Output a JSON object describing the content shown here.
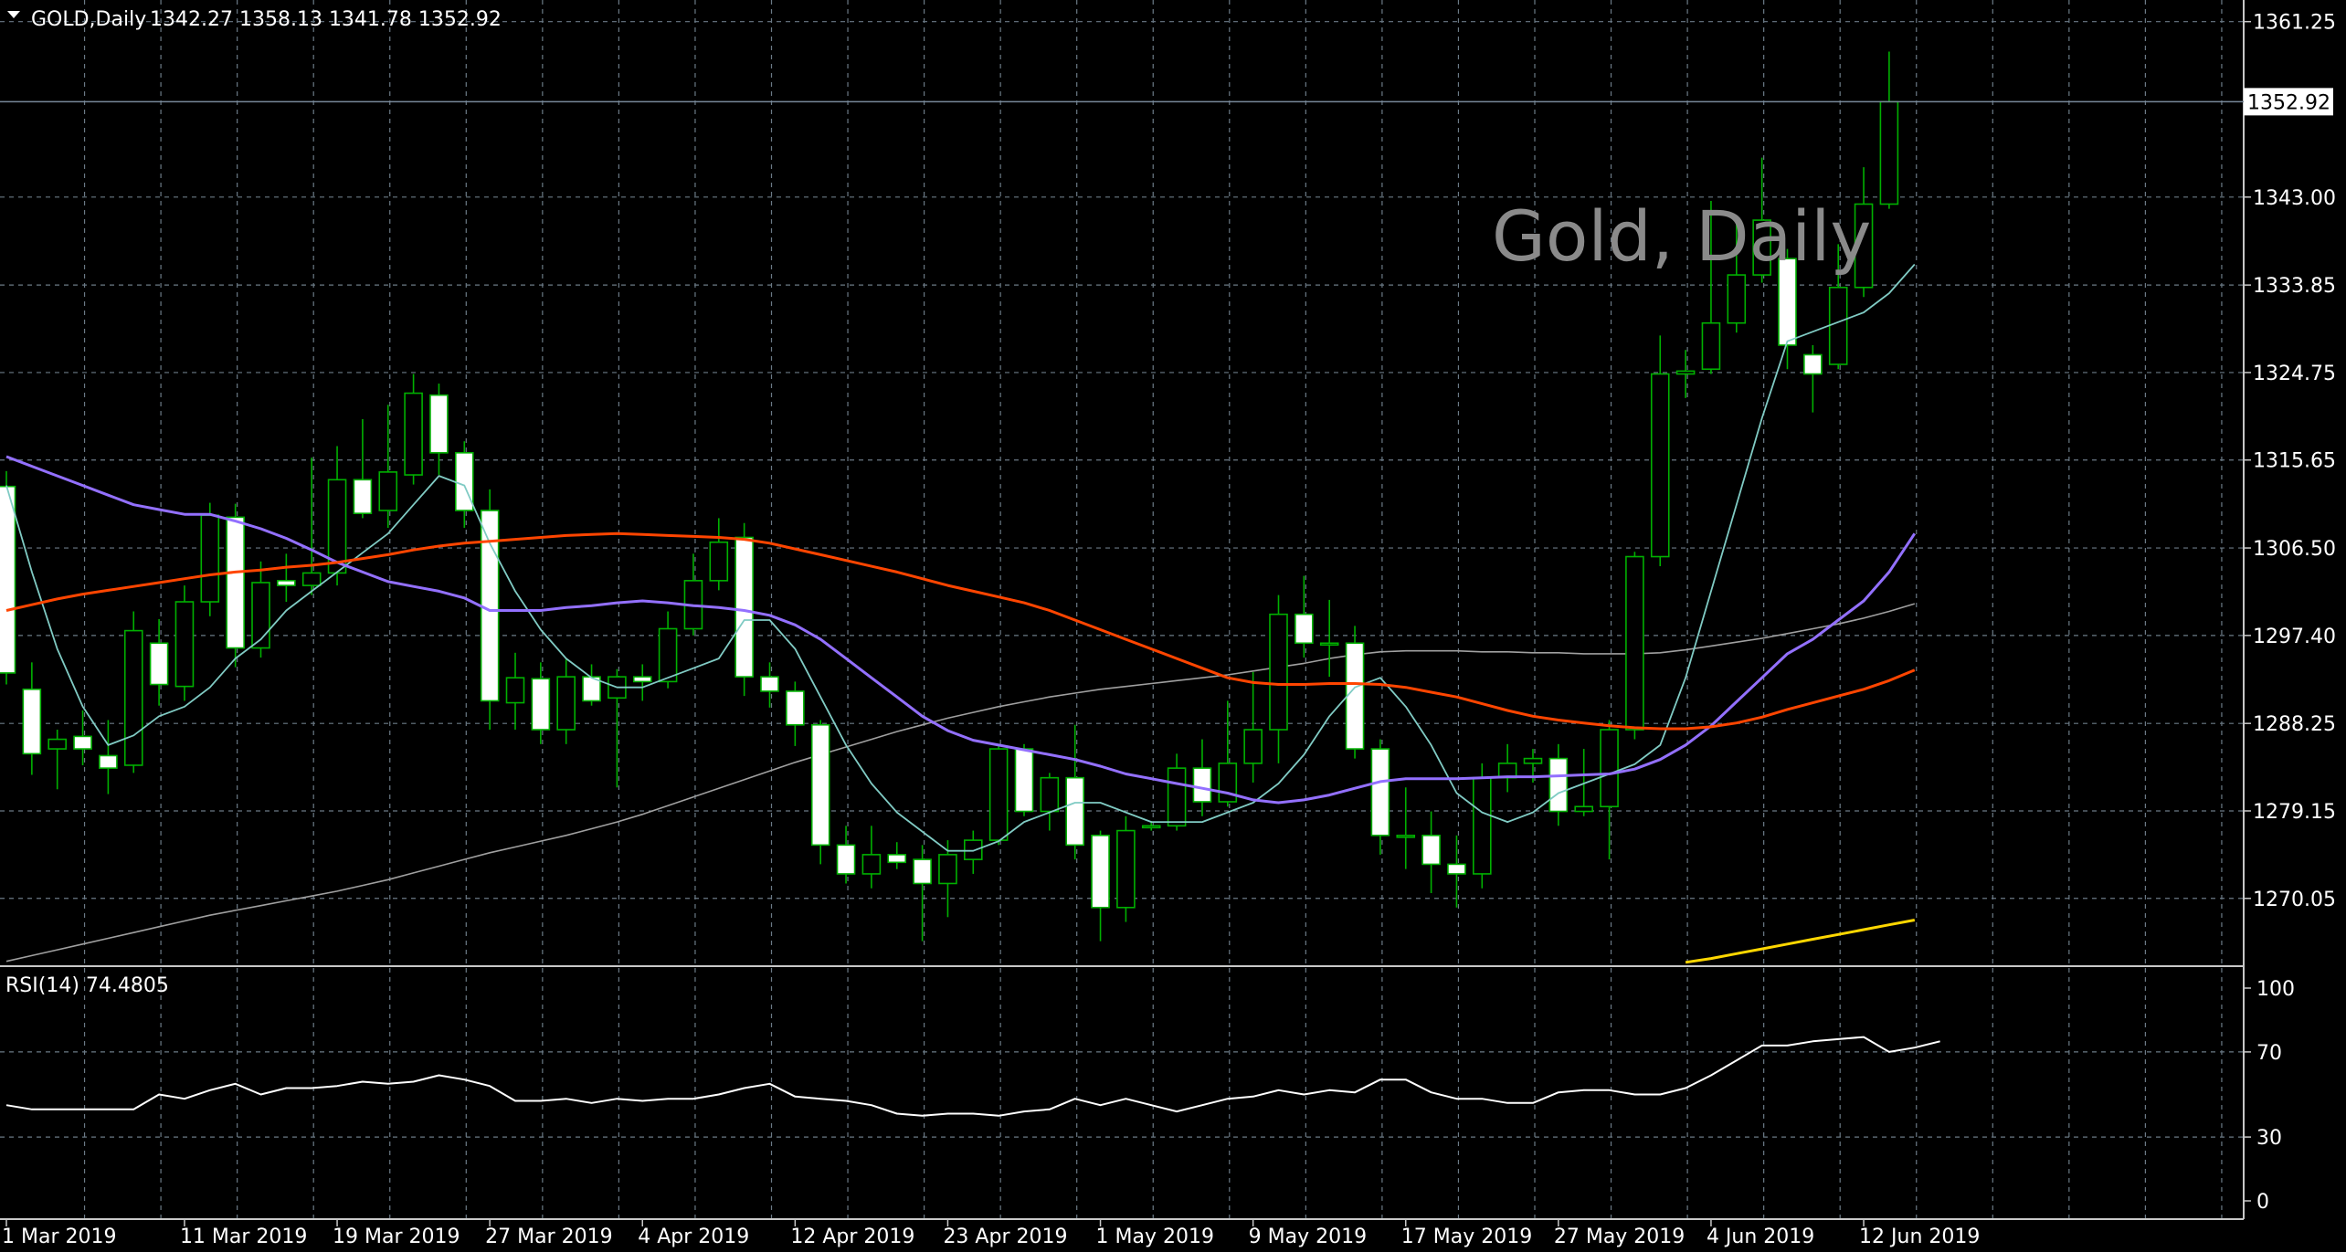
{
  "header": {
    "symbol": "GOLD,Daily",
    "ohlc": "1342.27 1358.13 1341.78 1352.92"
  },
  "watermark": "Gold, Daily",
  "price_badge": "1352.92",
  "rsi_label": "RSI(14) 74.4805",
  "colors": {
    "background": "#000000",
    "grid": "#6b7a86",
    "bull_candle": "#00b000",
    "bear_candle": "#ffffff",
    "bid_line": "#778899",
    "ma_fast": "#80cbc4",
    "ma_slow": "#9370ff",
    "ma_orange": "#ff4500",
    "ma_long": "#a0a0a0",
    "ma_yellow": "#ffd700",
    "rsi": "#ffffff"
  },
  "chart_data": [
    {
      "type": "candlestick",
      "title": "GOLD,Daily",
      "ylim": [
        1263.0,
        1363.5
      ],
      "y_ticks": [
        "1361.25",
        "1343.00",
        "1333.85",
        "1324.75",
        "1315.65",
        "1306.50",
        "1297.40",
        "1288.25",
        "1279.15",
        "1270.05"
      ],
      "x_ticks": [
        "1 Mar 2019",
        "11 Mar 2019",
        "19 Mar 2019",
        "27 Mar 2019",
        "4 Apr 2019",
        "12 Apr 2019",
        "23 Apr 2019",
        "1 May 2019",
        "9 May 2019",
        "17 May 2019",
        "27 May 2019",
        "4 Jun 2019",
        "12 Jun 2019"
      ],
      "x_tick_index": [
        0,
        7,
        13,
        19,
        25,
        31,
        37,
        43,
        49,
        55,
        61,
        67,
        73
      ],
      "last_price": 1352.92,
      "candles": [
        {
          "o": 1312.9,
          "h": 1314.5,
          "l": 1292.3,
          "c": 1293.5
        },
        {
          "o": 1291.8,
          "h": 1294.6,
          "l": 1282.9,
          "c": 1285.1
        },
        {
          "o": 1285.6,
          "h": 1287.6,
          "l": 1281.4,
          "c": 1286.6
        },
        {
          "o": 1286.9,
          "h": 1289.6,
          "l": 1283.9,
          "c": 1285.6
        },
        {
          "o": 1284.9,
          "h": 1288.6,
          "l": 1280.9,
          "c": 1283.6
        },
        {
          "o": 1283.9,
          "h": 1299.9,
          "l": 1283.1,
          "c": 1297.9
        },
        {
          "o": 1296.6,
          "h": 1299.1,
          "l": 1290.1,
          "c": 1292.3
        },
        {
          "o": 1292.1,
          "h": 1302.6,
          "l": 1290.6,
          "c": 1300.9
        },
        {
          "o": 1300.9,
          "h": 1311.2,
          "l": 1299.4,
          "c": 1309.9
        },
        {
          "o": 1309.7,
          "h": 1311.1,
          "l": 1294.1,
          "c": 1296.1
        },
        {
          "o": 1296.1,
          "h": 1305.1,
          "l": 1295.1,
          "c": 1302.9
        },
        {
          "o": 1303.1,
          "h": 1305.9,
          "l": 1300.9,
          "c": 1302.6
        },
        {
          "o": 1302.6,
          "h": 1315.9,
          "l": 1301.6,
          "c": 1303.9
        },
        {
          "o": 1303.9,
          "h": 1317.1,
          "l": 1302.6,
          "c": 1313.6
        },
        {
          "o": 1313.6,
          "h": 1319.9,
          "l": 1309.6,
          "c": 1310.1
        },
        {
          "o": 1310.4,
          "h": 1321.4,
          "l": 1308.6,
          "c": 1314.4
        },
        {
          "o": 1314.1,
          "h": 1324.6,
          "l": 1313.1,
          "c": 1322.6
        },
        {
          "o": 1322.4,
          "h": 1323.6,
          "l": 1314.1,
          "c": 1316.4
        },
        {
          "o": 1316.4,
          "h": 1317.6,
          "l": 1308.6,
          "c": 1310.4
        },
        {
          "o": 1310.4,
          "h": 1312.6,
          "l": 1287.6,
          "c": 1290.6
        },
        {
          "o": 1290.4,
          "h": 1295.6,
          "l": 1287.6,
          "c": 1293.0
        },
        {
          "o": 1292.9,
          "h": 1294.6,
          "l": 1286.1,
          "c": 1287.6
        },
        {
          "o": 1287.6,
          "h": 1294.9,
          "l": 1286.1,
          "c": 1293.1
        },
        {
          "o": 1293.1,
          "h": 1294.4,
          "l": 1290.1,
          "c": 1290.6
        },
        {
          "o": 1290.9,
          "h": 1293.9,
          "l": 1281.6,
          "c": 1293.1
        },
        {
          "o": 1293.1,
          "h": 1294.4,
          "l": 1290.6,
          "c": 1292.6
        },
        {
          "o": 1292.6,
          "h": 1299.9,
          "l": 1291.9,
          "c": 1298.1
        },
        {
          "o": 1298.1,
          "h": 1305.9,
          "l": 1297.4,
          "c": 1303.1
        },
        {
          "o": 1303.1,
          "h": 1309.6,
          "l": 1302.1,
          "c": 1307.1
        },
        {
          "o": 1307.6,
          "h": 1309.1,
          "l": 1291.1,
          "c": 1293.1
        },
        {
          "o": 1293.1,
          "h": 1294.6,
          "l": 1289.9,
          "c": 1291.6
        },
        {
          "o": 1291.6,
          "h": 1292.6,
          "l": 1285.9,
          "c": 1288.1
        },
        {
          "o": 1288.1,
          "h": 1288.6,
          "l": 1273.6,
          "c": 1275.6
        },
        {
          "o": 1275.6,
          "h": 1277.6,
          "l": 1271.6,
          "c": 1272.6
        },
        {
          "o": 1272.6,
          "h": 1277.6,
          "l": 1271.1,
          "c": 1274.6
        },
        {
          "o": 1274.6,
          "h": 1275.9,
          "l": 1273.1,
          "c": 1273.8
        },
        {
          "o": 1274.1,
          "h": 1275.6,
          "l": 1265.6,
          "c": 1271.6
        },
        {
          "o": 1271.6,
          "h": 1276.1,
          "l": 1268.1,
          "c": 1274.6
        },
        {
          "o": 1274.1,
          "h": 1277.1,
          "l": 1272.6,
          "c": 1276.1
        },
        {
          "o": 1276.1,
          "h": 1285.9,
          "l": 1275.6,
          "c": 1285.6
        },
        {
          "o": 1285.6,
          "h": 1286.1,
          "l": 1278.6,
          "c": 1279.1
        },
        {
          "o": 1279.1,
          "h": 1283.1,
          "l": 1277.1,
          "c": 1282.6
        },
        {
          "o": 1282.6,
          "h": 1288.1,
          "l": 1274.1,
          "c": 1275.6
        },
        {
          "o": 1276.6,
          "h": 1277.1,
          "l": 1265.6,
          "c": 1269.1
        },
        {
          "o": 1269.1,
          "h": 1278.6,
          "l": 1267.6,
          "c": 1277.1
        },
        {
          "o": 1277.6,
          "h": 1278.1,
          "l": 1277.1,
          "c": 1277.6
        },
        {
          "o": 1277.6,
          "h": 1285.1,
          "l": 1277.1,
          "c": 1283.6
        },
        {
          "o": 1283.6,
          "h": 1286.6,
          "l": 1278.6,
          "c": 1280.1
        },
        {
          "o": 1280.1,
          "h": 1290.6,
          "l": 1279.6,
          "c": 1284.1
        },
        {
          "o": 1284.1,
          "h": 1293.6,
          "l": 1282.1,
          "c": 1287.6
        },
        {
          "o": 1287.6,
          "h": 1301.6,
          "l": 1284.1,
          "c": 1299.6
        },
        {
          "o": 1299.6,
          "h": 1303.6,
          "l": 1295.1,
          "c": 1296.6
        },
        {
          "o": 1296.6,
          "h": 1301.1,
          "l": 1293.1,
          "c": 1296.6
        },
        {
          "o": 1296.6,
          "h": 1298.4,
          "l": 1284.6,
          "c": 1285.6
        },
        {
          "o": 1285.6,
          "h": 1286.6,
          "l": 1274.6,
          "c": 1276.6
        },
        {
          "o": 1276.6,
          "h": 1281.6,
          "l": 1273.1,
          "c": 1276.6
        },
        {
          "o": 1276.6,
          "h": 1279.1,
          "l": 1270.6,
          "c": 1273.6
        },
        {
          "o": 1273.6,
          "h": 1276.6,
          "l": 1269.1,
          "c": 1272.6
        },
        {
          "o": 1272.6,
          "h": 1284.1,
          "l": 1271.1,
          "c": 1282.6
        },
        {
          "o": 1282.6,
          "h": 1286.1,
          "l": 1281.1,
          "c": 1284.1
        },
        {
          "o": 1284.1,
          "h": 1285.6,
          "l": 1282.1,
          "c": 1284.6
        },
        {
          "o": 1284.6,
          "h": 1286.1,
          "l": 1277.6,
          "c": 1279.1
        },
        {
          "o": 1279.1,
          "h": 1285.6,
          "l": 1278.6,
          "c": 1279.6
        },
        {
          "o": 1279.6,
          "h": 1288.6,
          "l": 1274.1,
          "c": 1287.6
        },
        {
          "o": 1287.6,
          "h": 1306.1,
          "l": 1286.6,
          "c": 1305.6
        },
        {
          "o": 1305.6,
          "h": 1328.6,
          "l": 1304.6,
          "c": 1324.6
        },
        {
          "o": 1324.6,
          "h": 1327.1,
          "l": 1322.1,
          "c": 1324.9
        },
        {
          "o": 1325.1,
          "h": 1342.6,
          "l": 1324.6,
          "c": 1329.9
        },
        {
          "o": 1329.9,
          "h": 1340.6,
          "l": 1328.9,
          "c": 1334.9
        },
        {
          "o": 1334.9,
          "h": 1347.1,
          "l": 1334.1,
          "c": 1340.6
        },
        {
          "o": 1336.6,
          "h": 1337.6,
          "l": 1325.1,
          "c": 1327.6
        },
        {
          "o": 1326.6,
          "h": 1327.6,
          "l": 1320.6,
          "c": 1324.6
        },
        {
          "o": 1325.6,
          "h": 1338.1,
          "l": 1325.1,
          "c": 1333.6
        },
        {
          "o": 1333.6,
          "h": 1346.1,
          "l": 1332.6,
          "c": 1342.27
        },
        {
          "o": 1342.27,
          "h": 1358.13,
          "l": 1341.78,
          "c": 1352.92
        }
      ],
      "series": [
        {
          "name": "",
          "color_key": "ma_fast",
          "values": [
            1313,
            1304,
            1296,
            1290,
            1286,
            1287,
            1289,
            1290,
            1292,
            1295,
            1297,
            1300,
            1302,
            1304,
            1306,
            1308,
            1311,
            1314,
            1313,
            1307,
            1302,
            1298,
            1295,
            1293,
            1292,
            1292,
            1293,
            1294,
            1295,
            1299,
            1299,
            1296,
            1291,
            1286,
            1282,
            1279,
            1277,
            1275,
            1275,
            1276,
            1278,
            1279,
            1280,
            1280,
            1279,
            1278,
            1278,
            1278,
            1279,
            1280,
            1282,
            1285,
            1289,
            1292,
            1293,
            1290,
            1286,
            1281,
            1279,
            1278,
            1279,
            1281,
            1282,
            1283,
            1284,
            1286,
            1293,
            1302,
            1311,
            1320,
            1328,
            1329,
            1330,
            1331,
            1333,
            1336
          ]
        },
        {
          "name": "",
          "color_key": "ma_slow",
          "values": [
            1316,
            1315,
            1314,
            1313,
            1312,
            1311,
            1310.5,
            1310,
            1310,
            1309.3,
            1308.5,
            1307.5,
            1306.3,
            1305,
            1304,
            1303,
            1302.5,
            1302,
            1301.3,
            1300,
            1300,
            1300,
            1300.3,
            1300.5,
            1300.8,
            1301,
            1300.8,
            1300.5,
            1300.3,
            1300,
            1299.5,
            1298.5,
            1297,
            1295,
            1293,
            1291,
            1289,
            1287.5,
            1286.5,
            1286,
            1285.5,
            1285,
            1284.5,
            1283.8,
            1283,
            1282.5,
            1282,
            1281.5,
            1281,
            1280.3,
            1280,
            1280.3,
            1280.8,
            1281.5,
            1282.2,
            1282.5,
            1282.5,
            1282.5,
            1282.6,
            1282.7,
            1282.7,
            1282.8,
            1282.9,
            1283,
            1283.5,
            1284.5,
            1286,
            1288,
            1290.5,
            1293,
            1295.5,
            1297,
            1299,
            1301,
            1304,
            1308
          ]
        },
        {
          "name": "",
          "color_key": "ma_orange",
          "values": [
            1300,
            1300.6,
            1301.2,
            1301.7,
            1302.1,
            1302.5,
            1302.9,
            1303.3,
            1303.7,
            1304,
            1304.2,
            1304.5,
            1304.7,
            1305,
            1305.4,
            1305.8,
            1306.3,
            1306.7,
            1307,
            1307.2,
            1307.4,
            1307.6,
            1307.8,
            1307.9,
            1308,
            1307.9,
            1307.8,
            1307.7,
            1307.6,
            1307.4,
            1307,
            1306.4,
            1305.8,
            1305.2,
            1304.6,
            1304,
            1303.3,
            1302.6,
            1302,
            1301.4,
            1300.8,
            1300,
            1299,
            1298,
            1297,
            1296,
            1295,
            1294,
            1293,
            1292.5,
            1292.3,
            1292.3,
            1292.4,
            1292.4,
            1292.3,
            1292,
            1291.5,
            1291,
            1290.3,
            1289.6,
            1289,
            1288.6,
            1288.3,
            1288,
            1287.8,
            1287.7,
            1287.7,
            1287.9,
            1288.3,
            1288.9,
            1289.7,
            1290.4,
            1291.1,
            1291.8,
            1292.7,
            1293.8
          ]
        },
        {
          "name": "",
          "color_key": "ma_long",
          "values": [
            1263.5,
            1264.1,
            1264.7,
            1265.3,
            1265.9,
            1266.5,
            1267.1,
            1267.7,
            1268.3,
            1268.8,
            1269.3,
            1269.8,
            1270.3,
            1270.8,
            1271.4,
            1272,
            1272.7,
            1273.4,
            1274.1,
            1274.8,
            1275.4,
            1276,
            1276.6,
            1277.3,
            1278,
            1278.8,
            1279.7,
            1280.6,
            1281.5,
            1282.4,
            1283.3,
            1284.2,
            1285,
            1285.8,
            1286.6,
            1287.4,
            1288.1,
            1288.8,
            1289.4,
            1290,
            1290.5,
            1291,
            1291.4,
            1291.8,
            1292.1,
            1292.4,
            1292.7,
            1293,
            1293.3,
            1293.7,
            1294.1,
            1294.5,
            1295,
            1295.4,
            1295.7,
            1295.8,
            1295.8,
            1295.8,
            1295.7,
            1295.7,
            1295.6,
            1295.6,
            1295.5,
            1295.5,
            1295.5,
            1295.6,
            1295.9,
            1296.3,
            1296.7,
            1297.1,
            1297.6,
            1298.1,
            1298.6,
            1299.2,
            1299.9,
            1300.7
          ]
        },
        {
          "name": "",
          "color_key": "ma_yellow",
          "start_index": 66,
          "values": [
            1263.4,
            1263.8,
            1264.3,
            1264.8,
            1265.3,
            1265.8,
            1266.3,
            1266.8,
            1267.3,
            1267.8
          ]
        }
      ]
    },
    {
      "type": "line",
      "title": "RSI(14) 74.4805",
      "ylim": [
        0,
        100
      ],
      "y_ticks": [
        "100",
        "70",
        "30",
        "0"
      ],
      "series": [
        {
          "name": "",
          "color_key": "rsi",
          "values": [
            45,
            43,
            43,
            43,
            43,
            43,
            50,
            48,
            52,
            55,
            50,
            53,
            53,
            54,
            56,
            55,
            56,
            59,
            57,
            54,
            47,
            47,
            48,
            46,
            48,
            47,
            48,
            48,
            50,
            53,
            55,
            49,
            48,
            47,
            45,
            41,
            40,
            41,
            41,
            40,
            42,
            43,
            48,
            45,
            48,
            45,
            42,
            45,
            48,
            49,
            52,
            50,
            52,
            51,
            57,
            57,
            51,
            48,
            48,
            46,
            46,
            51,
            52,
            52,
            50,
            50,
            53,
            59,
            66,
            73,
            73,
            75,
            76,
            77,
            70,
            72,
            75
          ]
        }
      ]
    }
  ]
}
